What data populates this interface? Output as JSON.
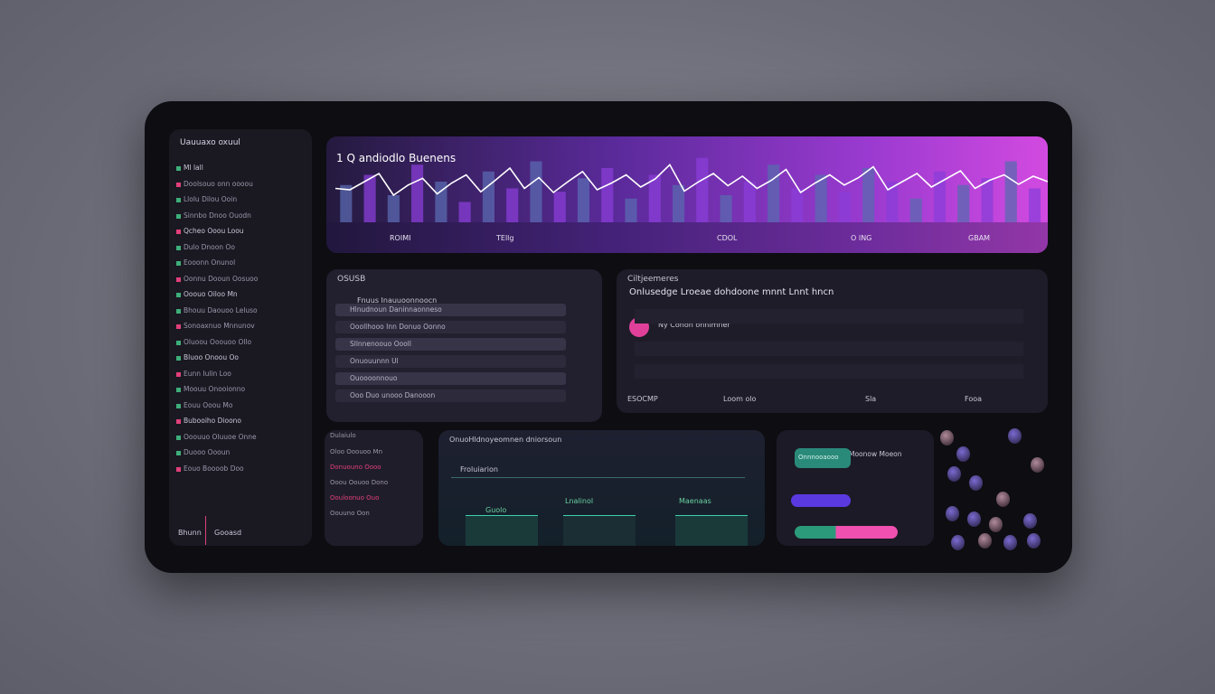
{
  "sidebar": {
    "title": "Uauuaxo oxuul",
    "items": [
      "Ml lall",
      "Doolsouo onn oooou",
      "Llolu Dilou Ooin",
      "Sinnbo Dnoo Ouodn",
      "Qcheo Ooou Loou",
      "Dulo Dnoon Oo",
      "Eooonn Onunol",
      "Oonnu Dooun Oosuoo",
      "Ooouo Oiloo Mn",
      "Bhouu Daouoo Leluso",
      "Sonoaxnuo Mnnunov",
      "Oluoou Ooouoo Ollo",
      "Bluoo Onoou Oo",
      "Eunn Iulin Loo",
      "Moouu Onooionno",
      "Eouu Ooou Mo",
      "Bubooiho Dioono",
      "Ooouuo Oluuoe Onne",
      "Duooo Oooun",
      "Eouo Boooob Doo"
    ],
    "footer": [
      "Bhunn",
      "Gooasd"
    ]
  },
  "banner": {
    "title": "1 Q andiodlo Buenens",
    "labels": [
      "ROIMI",
      "TEllg",
      "CDOL",
      "O ING",
      "GBAM"
    ],
    "bars": [
      55,
      70,
      40,
      85,
      60,
      30,
      75,
      50,
      90,
      45,
      65,
      80,
      35,
      70,
      55,
      95,
      40,
      60,
      85,
      50,
      70,
      45,
      80,
      60,
      35,
      75,
      55,
      65,
      90,
      50
    ],
    "line": [
      50,
      48,
      60,
      72,
      40,
      55,
      65,
      42,
      58,
      70,
      45,
      62,
      80,
      50,
      66,
      44,
      60,
      75,
      48,
      58,
      70,
      52,
      64,
      85,
      46,
      60,
      72,
      54,
      68,
      50,
      62,
      78,
      44,
      58,
      70,
      55,
      66,
      82,
      48,
      60,
      72,
      52,
      64,
      76,
      50,
      62,
      70,
      56,
      68,
      60
    ]
  },
  "panel_a": {
    "title": "OSUSB",
    "header": "Fnuus Inauuoonnoocn",
    "rows": [
      "Hlnudnoun Daninnaonneso",
      "Ooollhooo Inn Donuo Oonno",
      "Sllnnenoouo Oooll",
      "Onuouunnn Ul",
      "Ouoooonnouo",
      "Ooo Duo unooo Danooon"
    ]
  },
  "panel_b": {
    "title": "Ciltjeemeres",
    "subtitle": "Onlusedge Lroeae dohdoone mnnt Lnnt hncn",
    "item": "Ny Conon onnimner",
    "footer": [
      "ESOCMP",
      "Loom olo",
      "Sla",
      "Fooa"
    ]
  },
  "panel_c": {
    "title": "Dulaiulo",
    "rows": [
      "Oloo Ooouoo Mn",
      "Donuouno Oooo",
      "Ooou Oouoo Dono",
      "Oouloonuo Ouo",
      "Oouuno Oon"
    ]
  },
  "panel_d": {
    "title": "OnuoHldnoyeomnen dniorsoun",
    "field": "Froluiarion",
    "labels": [
      "Guolo",
      "Lnalinol",
      "Maenaas"
    ]
  },
  "panel_e": {
    "title": "Moonow Moeon",
    "chip": "Onnnooaooo"
  }
}
